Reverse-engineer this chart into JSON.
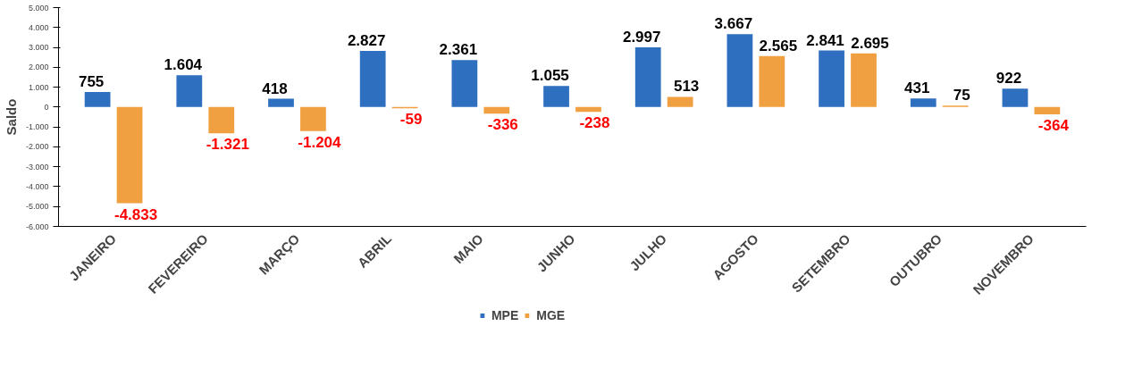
{
  "chart_data": {
    "type": "bar",
    "ylabel": "Saldo",
    "categories": [
      "JANEIRO",
      "FEVEREIRO",
      "MARÇO",
      "ABRIL",
      "MAIO",
      "JUNHO",
      "JULHO",
      "AGOSTO",
      "SETEMBRO",
      "OUTUBRO",
      "NOVEMBRO"
    ],
    "series": [
      {
        "name": "MPE",
        "color": "#2e6fc0",
        "values": [
          755,
          1604,
          418,
          2827,
          2361,
          1055,
          2997,
          3667,
          2841,
          431,
          922
        ],
        "value_labels": [
          "755",
          "1.604",
          "418",
          "2.827",
          "2.361",
          "1.055",
          "2.997",
          "3.667",
          "2.841",
          "431",
          "922"
        ]
      },
      {
        "name": "MGE",
        "color": "#f0a040",
        "values": [
          -4833,
          -1321,
          -1204,
          -59,
          -336,
          -238,
          513,
          2565,
          2695,
          75,
          -364
        ],
        "value_labels": [
          "-4.833",
          "-1.321",
          "-1.204",
          "-59",
          "-336",
          "-238",
          "513",
          "2.565",
          "2.695",
          "75",
          "-364"
        ]
      }
    ],
    "ylim": [
      -6000,
      5000
    ],
    "yticks": [
      {
        "value": -6000,
        "label": "-6.000"
      },
      {
        "value": -5000,
        "label": "-5.000"
      },
      {
        "value": -4000,
        "label": "-4.000"
      },
      {
        "value": -3000,
        "label": "-3.000"
      },
      {
        "value": -2000,
        "label": "-2.000"
      },
      {
        "value": -1000,
        "label": "-1.000"
      },
      0,
      {
        "value": 1000,
        "label": "1.000"
      },
      {
        "value": 2000,
        "label": "2.000"
      },
      {
        "value": 3000,
        "label": "3.000"
      },
      {
        "value": 4000,
        "label": "4.000"
      },
      {
        "value": 5000,
        "label": "5.000"
      }
    ],
    "grid": false,
    "legend": "bottom"
  }
}
